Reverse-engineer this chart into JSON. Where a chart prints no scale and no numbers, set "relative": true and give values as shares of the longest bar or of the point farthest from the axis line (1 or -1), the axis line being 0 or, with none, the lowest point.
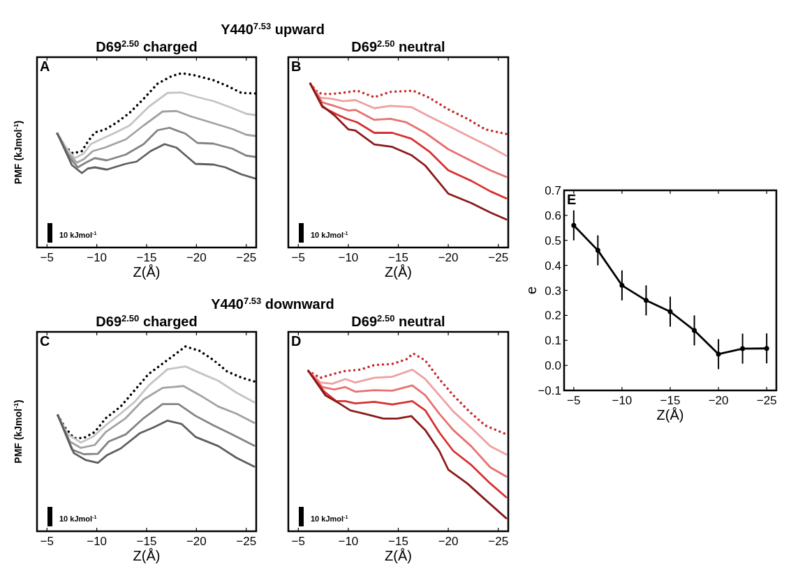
{
  "chart_data": [
    {
      "type": "line",
      "title": "D69$^{2.50}$ charged",
      "xlabel": "Z(Å)",
      "ylabel": "PMF (kJmol$^{-1}$)",
      "annotations": [
        "A",
        "10 kJmol$^{-1}$",
        "Y440$^{7.53}$ upward"
      ],
      "relative": true,
      "xlim": [
        -4,
        -26
      ],
      "xticks": [
        -5,
        -10,
        -15,
        -20,
        -25
      ],
      "series": [
        {
          "color": "#000000",
          "line_style": "dotted",
          "x": [
            -6.05,
            -6.8,
            -7.6,
            -8.5,
            -9.1,
            -9.8,
            -10.8,
            -11.9,
            -13.3,
            -14.7,
            -16.1,
            -17.5,
            -18.5,
            -19.9,
            -21.7,
            -23.1,
            -24.5,
            -25.9
          ],
          "values": [
            0.653,
            0.58,
            0.54,
            0.553,
            0.607,
            0.66,
            0.676,
            0.713,
            0.773,
            0.853,
            0.94,
            0.983,
            1.0,
            0.987,
            0.96,
            0.927,
            0.887,
            0.884
          ]
        },
        {
          "color": "#c4c4c4",
          "line_style": "solid",
          "x": [
            -6.05,
            -7.0,
            -7.8,
            -8.7,
            -9.4,
            -10.1,
            -11.9,
            -13.3,
            -15.2,
            -17.1,
            -18.5,
            -20.3,
            -21.7,
            -23.6,
            -25,
            -25.9
          ],
          "values": [
            0.653,
            0.567,
            0.513,
            0.54,
            0.593,
            0.613,
            0.66,
            0.7,
            0.807,
            0.887,
            0.889,
            0.86,
            0.84,
            0.8,
            0.767,
            0.76
          ]
        },
        {
          "color": "#a2a2a2",
          "line_style": "solid",
          "x": [
            -6.05,
            -7.1,
            -8.0,
            -8.7,
            -9.6,
            -10.8,
            -12.9,
            -14.7,
            -16.6,
            -18.0,
            -19.4,
            -21.7,
            -23.6,
            -25,
            -25.9
          ],
          "values": [
            0.653,
            0.54,
            0.487,
            0.507,
            0.553,
            0.573,
            0.62,
            0.7,
            0.78,
            0.783,
            0.753,
            0.713,
            0.68,
            0.647,
            0.64
          ]
        },
        {
          "color": "#838383",
          "line_style": "solid",
          "x": [
            -6.05,
            -7.3,
            -8.1,
            -8.9,
            -9.8,
            -11.0,
            -12.9,
            -14.7,
            -16.1,
            -17.3,
            -18.9,
            -20.1,
            -21.7,
            -23.6,
            -25,
            -25.9
          ],
          "values": [
            0.653,
            0.513,
            0.46,
            0.487,
            0.513,
            0.5,
            0.533,
            0.593,
            0.673,
            0.687,
            0.653,
            0.6,
            0.596,
            0.567,
            0.527,
            0.52
          ]
        },
        {
          "color": "#5e5e5e",
          "line_style": "solid",
          "x": [
            -6.05,
            -7.5,
            -8.5,
            -9.1,
            -9.8,
            -11.0,
            -12.9,
            -14.0,
            -15.4,
            -16.8,
            -18.0,
            -19.9,
            -21.7,
            -22.9,
            -24.5,
            -25.9
          ],
          "values": [
            0.653,
            0.473,
            0.427,
            0.453,
            0.46,
            0.447,
            0.48,
            0.493,
            0.553,
            0.593,
            0.573,
            0.48,
            0.476,
            0.46,
            0.42,
            0.396
          ]
        }
      ]
    },
    {
      "type": "line",
      "title": "D69$^{2.50}$ neutral",
      "xlabel": "Z(Å)",
      "annotations": [
        "B",
        "10 kJmol$^{-1}$"
      ],
      "relative": true,
      "xlim": [
        -4,
        -26
      ],
      "xticks": [
        -5,
        -10,
        -15,
        -20,
        -25
      ],
      "series": [
        {
          "color": "#c82828",
          "line_style": "dotted",
          "x": [
            -6.2,
            -7.0,
            -7.9,
            -9.3,
            -10.9,
            -12.6,
            -14.2,
            -16.5,
            -18.1,
            -20.0,
            -21.9,
            -23.7,
            -25.8
          ],
          "values": [
            1.0,
            0.943,
            0.936,
            0.943,
            0.957,
            0.917,
            0.95,
            0.957,
            0.914,
            0.843,
            0.786,
            0.721,
            0.693
          ]
        },
        {
          "color": "#f0a0a0",
          "line_style": "solid",
          "x": [
            -6.2,
            -7.2,
            -8.4,
            -9.5,
            -10.7,
            -12.6,
            -14.2,
            -16.3,
            -18.1,
            -20.0,
            -22.3,
            -24.2,
            -25.8
          ],
          "values": [
            1.0,
            0.914,
            0.907,
            0.893,
            0.9,
            0.85,
            0.864,
            0.857,
            0.8,
            0.743,
            0.671,
            0.614,
            0.56
          ]
        },
        {
          "color": "#e87070",
          "line_style": "solid",
          "x": [
            -6.2,
            -7.4,
            -8.6,
            -10.0,
            -10.7,
            -12.6,
            -14.2,
            -15.8,
            -17.7,
            -20.0,
            -22.3,
            -24.2,
            -25.8
          ],
          "values": [
            1.0,
            0.886,
            0.864,
            0.836,
            0.84,
            0.779,
            0.786,
            0.764,
            0.7,
            0.6,
            0.529,
            0.471,
            0.431
          ]
        },
        {
          "color": "#d83030",
          "line_style": "solid",
          "x": [
            -6.2,
            -7.4,
            -8.8,
            -9.8,
            -10.9,
            -12.6,
            -14.4,
            -16.3,
            -18.1,
            -20.0,
            -22.3,
            -24.2,
            -25.8
          ],
          "values": [
            1.0,
            0.857,
            0.814,
            0.786,
            0.764,
            0.7,
            0.7,
            0.664,
            0.586,
            0.471,
            0.407,
            0.343,
            0.3
          ]
        },
        {
          "color": "#8b1a1a",
          "line_style": "solid",
          "x": [
            -6.2,
            -7.4,
            -8.6,
            -10.0,
            -10.7,
            -12.6,
            -14.4,
            -16.3,
            -17.7,
            -20.0,
            -22.3,
            -24.2,
            -25.8
          ],
          "values": [
            1.0,
            0.864,
            0.807,
            0.721,
            0.714,
            0.629,
            0.614,
            0.564,
            0.5,
            0.329,
            0.271,
            0.214,
            0.171
          ]
        }
      ]
    },
    {
      "type": "line",
      "title": "D69$^{2.50}$ charged",
      "xlabel": "Z(Å)",
      "ylabel": "PMF (kJmol$^{-1}$)",
      "annotations": [
        "C",
        "10 kJmol$^{-1}$",
        "Y440$^{7.53}$ downward"
      ],
      "relative": true,
      "xlim": [
        -4,
        -26
      ],
      "xticks": [
        -5,
        -10,
        -15,
        -20,
        -25
      ],
      "series": [
        {
          "color": "#000000",
          "line_style": "dotted",
          "x": [
            -6.1,
            -6.8,
            -7.7,
            -8.7,
            -9.8,
            -10.9,
            -12.4,
            -13.8,
            -15.2,
            -17.1,
            -18.9,
            -20.3,
            -21.7,
            -23.1,
            -24.5,
            -25.8
          ],
          "values": [
            0.627,
            0.562,
            0.505,
            0.505,
            0.537,
            0.612,
            0.675,
            0.763,
            0.851,
            0.927,
            1.0,
            0.977,
            0.927,
            0.864,
            0.832,
            0.811
          ]
        },
        {
          "color": "#c4c4c4",
          "line_style": "solid",
          "x": [
            -6.1,
            -7.1,
            -8.4,
            -9.6,
            -10.9,
            -12.4,
            -13.8,
            -15.2,
            -17.1,
            -18.9,
            -20.3,
            -22.2,
            -24.0,
            -25.8
          ],
          "values": [
            0.627,
            0.524,
            0.48,
            0.511,
            0.574,
            0.637,
            0.7,
            0.788,
            0.877,
            0.892,
            0.858,
            0.814,
            0.751,
            0.698
          ]
        },
        {
          "color": "#a2a2a2",
          "line_style": "solid",
          "x": [
            -6.1,
            -7.3,
            -8.4,
            -9.8,
            -10.9,
            -12.9,
            -14.7,
            -16.6,
            -18.7,
            -20.3,
            -22.2,
            -24.0,
            -25.8
          ],
          "values": [
            0.627,
            0.486,
            0.451,
            0.467,
            0.537,
            0.612,
            0.713,
            0.776,
            0.786,
            0.738,
            0.675,
            0.637,
            0.587
          ]
        },
        {
          "color": "#838383",
          "line_style": "solid",
          "x": [
            -6.1,
            -7.5,
            -8.7,
            -10.1,
            -11.2,
            -12.9,
            -14.7,
            -16.6,
            -18.2,
            -19.9,
            -21.7,
            -23.6,
            -25.8
          ],
          "values": [
            0.627,
            0.442,
            0.417,
            0.419,
            0.486,
            0.524,
            0.612,
            0.688,
            0.688,
            0.625,
            0.574,
            0.524,
            0.463
          ]
        },
        {
          "color": "#5e5e5e",
          "line_style": "solid",
          "x": [
            -6.1,
            -7.7,
            -8.9,
            -10.1,
            -11.0,
            -12.4,
            -14.3,
            -15.7,
            -17.1,
            -18.5,
            -19.9,
            -22.2,
            -24.0,
            -25.8
          ],
          "values": [
            0.627,
            0.423,
            0.385,
            0.37,
            0.411,
            0.448,
            0.53,
            0.562,
            0.599,
            0.581,
            0.511,
            0.461,
            0.398,
            0.35
          ]
        }
      ]
    },
    {
      "type": "line",
      "title": "D69$^{2.50}$ neutral",
      "xlabel": "Z(Å)",
      "annotations": [
        "D",
        "10 kJmol$^{-1}$"
      ],
      "relative": true,
      "xlim": [
        -4,
        -26
      ],
      "xticks": [
        -5,
        -10,
        -15,
        -20,
        -25
      ],
      "series": [
        {
          "color": "#c82828",
          "line_style": "dotted",
          "x": [
            -6.0,
            -7.2,
            -8.4,
            -9.7,
            -11.2,
            -12.6,
            -14.4,
            -15.8,
            -16.5,
            -17.7,
            -19.1,
            -20.5,
            -22.1,
            -23.7,
            -25.6
          ],
          "values": [
            0.902,
            0.863,
            0.883,
            0.902,
            0.909,
            0.935,
            0.941,
            0.967,
            1.0,
            0.961,
            0.856,
            0.765,
            0.674,
            0.595,
            0.55
          ]
        },
        {
          "color": "#f0a0a0",
          "line_style": "solid",
          "x": [
            -6.0,
            -7.2,
            -8.4,
            -9.7,
            -10.7,
            -12.6,
            -14.4,
            -16.4,
            -17.7,
            -19.1,
            -20.5,
            -22.3,
            -24.2,
            -25.8
          ],
          "values": [
            0.902,
            0.837,
            0.83,
            0.856,
            0.837,
            0.863,
            0.869,
            0.909,
            0.856,
            0.765,
            0.674,
            0.582,
            0.478,
            0.432
          ]
        },
        {
          "color": "#e87070",
          "line_style": "solid",
          "x": [
            -6.0,
            -7.4,
            -8.6,
            -9.7,
            -10.7,
            -12.6,
            -14.4,
            -16.4,
            -17.7,
            -19.1,
            -20.5,
            -22.3,
            -24.2,
            -25.8
          ],
          "values": [
            0.902,
            0.811,
            0.798,
            0.811,
            0.785,
            0.794,
            0.791,
            0.82,
            0.765,
            0.661,
            0.569,
            0.478,
            0.36,
            0.308
          ]
        },
        {
          "color": "#d83030",
          "line_style": "solid",
          "x": [
            -6.0,
            -7.6,
            -8.8,
            -9.7,
            -10.7,
            -12.6,
            -14.4,
            -16.4,
            -17.7,
            -19.1,
            -20.5,
            -22.3,
            -24.2,
            -25.8
          ],
          "values": [
            0.902,
            0.785,
            0.732,
            0.732,
            0.719,
            0.728,
            0.713,
            0.732,
            0.68,
            0.556,
            0.452,
            0.373,
            0.269,
            0.191
          ]
        },
        {
          "color": "#8b1a1a",
          "line_style": "solid",
          "x": [
            -6.0,
            -7.7,
            -9.1,
            -10.2,
            -11.6,
            -13.5,
            -14.9,
            -16.3,
            -17.7,
            -19.1,
            -20.0,
            -21.9,
            -23.7,
            -25.8
          ],
          "values": [
            0.902,
            0.765,
            0.719,
            0.68,
            0.661,
            0.634,
            0.634,
            0.648,
            0.569,
            0.452,
            0.347,
            0.269,
            0.178,
            0.073
          ]
        }
      ]
    },
    {
      "type": "line",
      "xlabel": "Z(Å)",
      "ylabel": "e",
      "annotations": [
        "E"
      ],
      "marker": "circle",
      "xlim": [
        -4,
        -26
      ],
      "xticks": [
        -5,
        -10,
        -15,
        -20,
        -25
      ],
      "ylim": [
        -0.1,
        0.7
      ],
      "yticks": [
        -0.1,
        {
          "value": 0,
          "label": "0.0"
        },
        0.1,
        0.2,
        0.3,
        0.4,
        0.5,
        0.6,
        0.7
      ],
      "series": [
        {
          "color": "#000000",
          "line_style": "solid",
          "x": [
            -5,
            -7.5,
            -10,
            -12.5,
            -15,
            -17.5,
            -20,
            -22.5,
            -25
          ],
          "values": [
            0.56,
            0.46,
            0.32,
            0.26,
            0.215,
            0.14,
            0.045,
            0.067,
            0.068
          ],
          "errors": [
            0.06,
            0.06,
            0.06,
            0.06,
            0.06,
            0.06,
            0.06,
            0.06,
            0.06
          ]
        }
      ]
    }
  ]
}
